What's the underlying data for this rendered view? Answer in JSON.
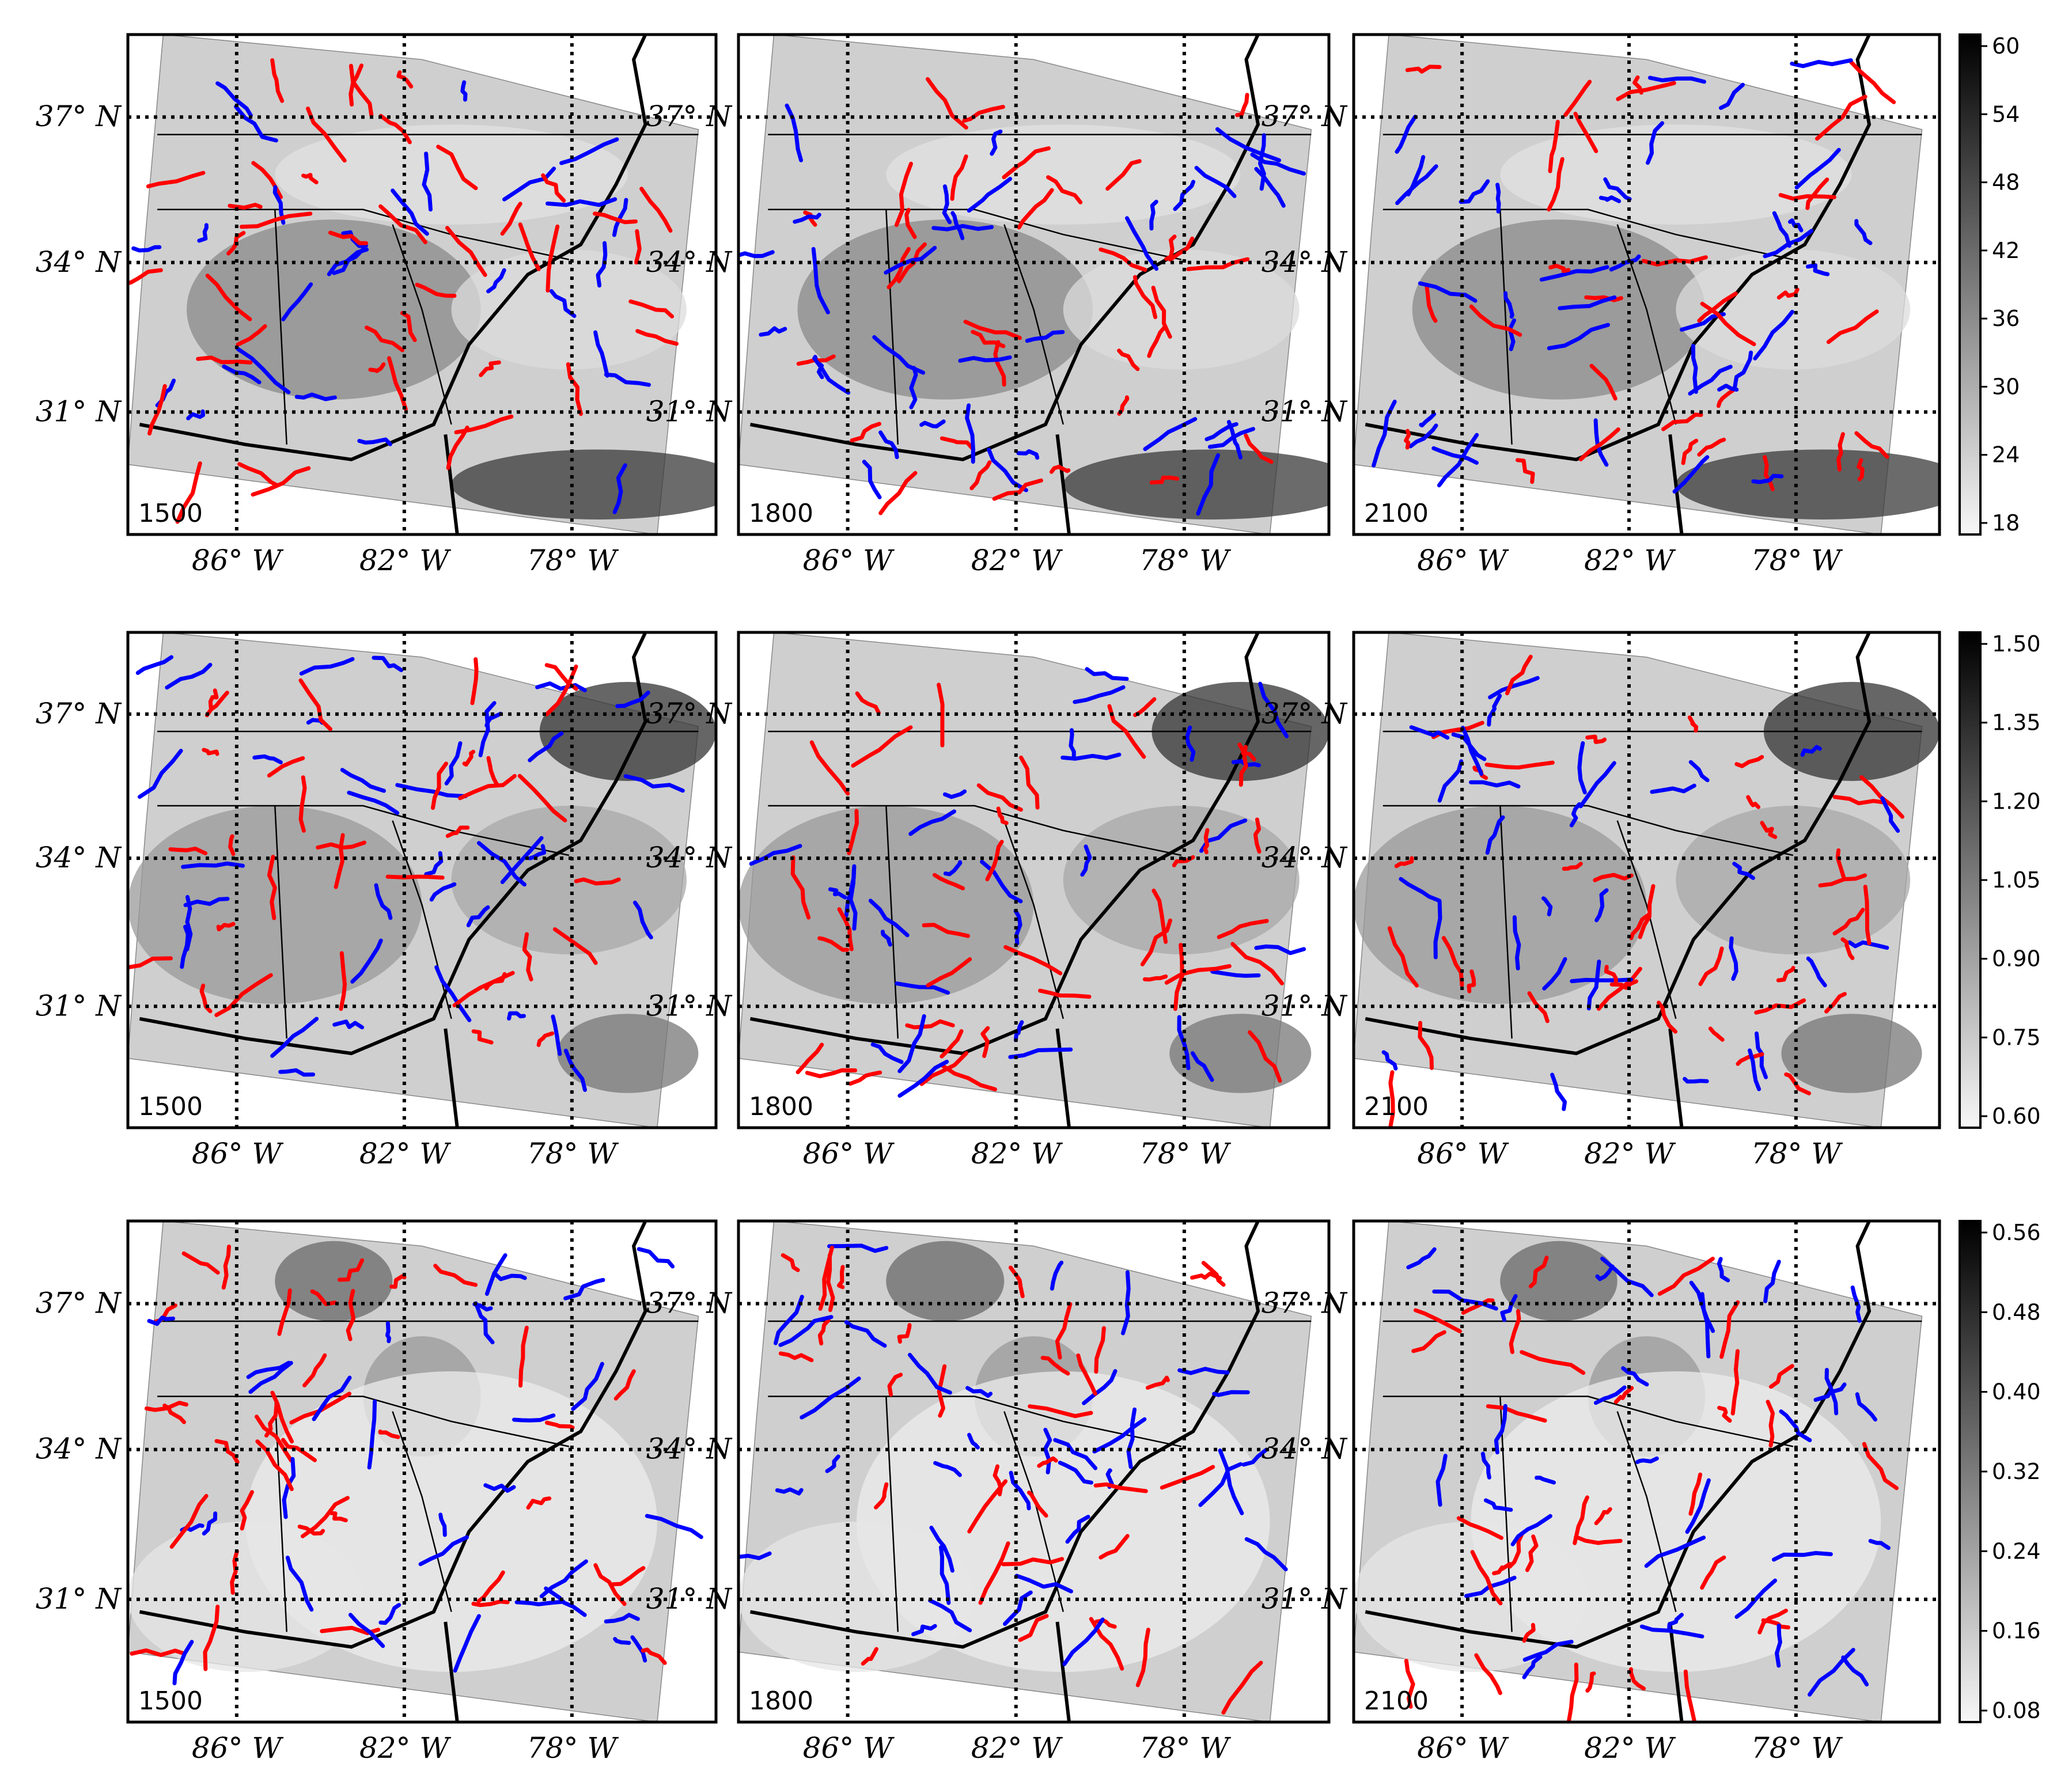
{
  "figure": {
    "rows": [
      {
        "colorbar": {
          "ticks": [
            "60",
            "54",
            "48",
            "42",
            "36",
            "30",
            "24",
            "18"
          ]
        },
        "panels": [
          {
            "time": "1500"
          },
          {
            "time": "1800"
          },
          {
            "time": "2100"
          }
        ]
      },
      {
        "colorbar": {
          "ticks": [
            "1.50",
            "1.35",
            "1.20",
            "1.05",
            "0.90",
            "0.75",
            "0.60"
          ]
        },
        "panels": [
          {
            "time": "1500"
          },
          {
            "time": "1800"
          },
          {
            "time": "2100"
          }
        ]
      },
      {
        "colorbar": {
          "ticks": [
            "0.56",
            "0.48",
            "0.40",
            "0.32",
            "0.24",
            "0.16",
            "0.08"
          ]
        },
        "panels": [
          {
            "time": "1500"
          },
          {
            "time": "1800"
          },
          {
            "time": "2100"
          }
        ]
      }
    ],
    "lat_labels": [
      "37° N",
      "34° N",
      "31° N"
    ],
    "lon_labels": [
      "86° W",
      "82° W",
      "78° W"
    ],
    "front_colors": {
      "warm": "#ff0000",
      "cold": "#0000ff"
    },
    "colormap": "gray (white = low, black = high)"
  }
}
